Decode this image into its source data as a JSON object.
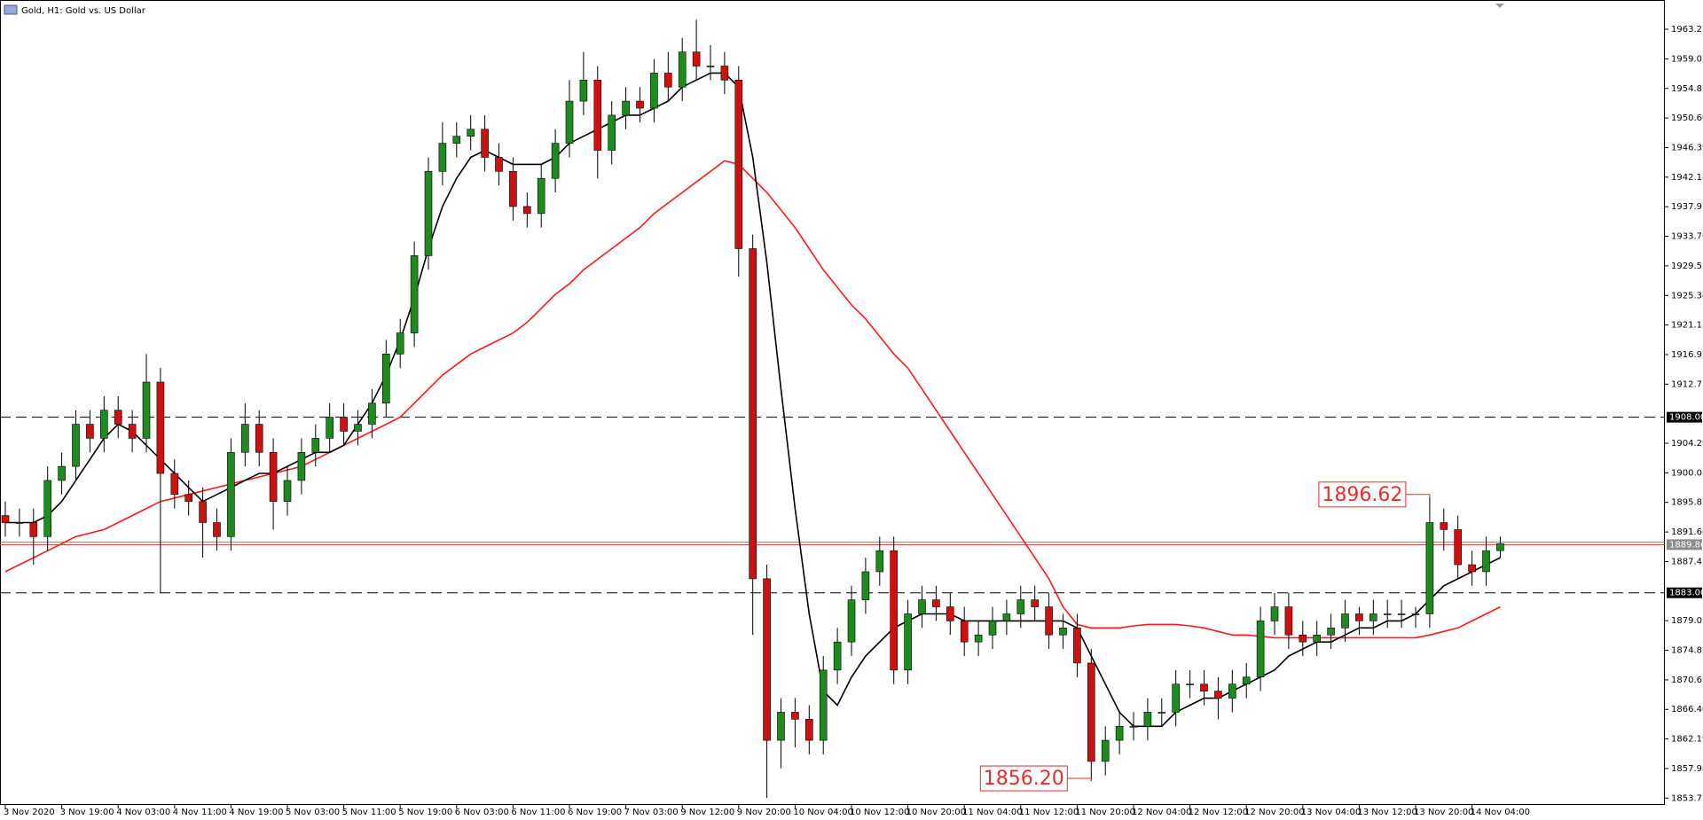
{
  "chart_data": {
    "type": "candlestick",
    "title": "Gold, H1:  Gold vs. US Dollar",
    "categories": [
      "3 Nov 2020",
      null,
      null,
      null,
      "3 Nov 19:00",
      null,
      null,
      null,
      "4 Nov 03:00",
      null,
      null,
      null,
      "4 Nov 11:00",
      null,
      null,
      null,
      "4 Nov 19:00",
      null,
      null,
      null,
      "5 Nov 03:00",
      null,
      null,
      null,
      "5 Nov 11:00",
      null,
      null,
      null,
      "5 Nov 19:00",
      null,
      null,
      null,
      "6 Nov 03:00",
      null,
      null,
      null,
      "6 Nov 11:00",
      null,
      null,
      null,
      "6 Nov 19:00",
      null,
      null,
      null,
      "7 Nov 03:00",
      null,
      null,
      null,
      "9 Nov 12:00",
      null,
      null,
      null,
      "9 Nov 20:00",
      null,
      null,
      null,
      "10 Nov 04:00",
      null,
      null,
      null,
      "10 Nov 12:00",
      null,
      null,
      null,
      "10 Nov 20:00",
      null,
      null,
      null,
      "11 Nov 04:00",
      null,
      null,
      null,
      "11 Nov 12:00",
      null,
      null,
      null,
      "11 Nov 20:00",
      null,
      null,
      null,
      "12 Nov 04:00",
      null,
      null,
      null,
      "12 Nov 12:00",
      null,
      null,
      null,
      "12 Nov 20:00",
      null,
      null,
      null,
      "13 Nov 04:00",
      null,
      null,
      null,
      "13 Nov 12:00",
      null,
      null,
      null,
      "13 Nov 20:00",
      null,
      null,
      null,
      "14 Nov 04:00",
      null,
      null
    ],
    "open": [
      1894,
      1893,
      1893,
      1891,
      1899,
      1901,
      1907,
      1905,
      1909,
      1907,
      1905,
      1913,
      1900,
      1897,
      1896,
      1893,
      1891,
      1903,
      1907,
      1903,
      1896,
      1899,
      1903,
      1905,
      1908,
      1906,
      1907,
      1910,
      1917,
      1920,
      1931,
      1943,
      1947,
      1948,
      1949,
      1945,
      1943,
      1938,
      1937,
      1942,
      1947,
      1953,
      1956,
      1946,
      1951,
      1953,
      1952,
      1957,
      1955,
      1960,
      1958,
      1958,
      1956,
      1932,
      1885,
      1862,
      1866,
      1865,
      1862,
      1872,
      1876,
      1882,
      1886,
      1889,
      1872,
      1880,
      1882,
      1881,
      1879,
      1876,
      1877,
      1879,
      1880,
      1882,
      1881,
      1877,
      1878,
      1873,
      1859,
      1862,
      1864,
      1864,
      1866,
      1866,
      1870,
      1870,
      1869,
      1868,
      1870,
      1871,
      1879,
      1881,
      1877,
      1876,
      1877,
      1878,
      1880,
      1879,
      1880,
      1880,
      1880,
      1880,
      1893,
      1892,
      1887,
      1886,
      1889
    ],
    "high": [
      1896,
      1895,
      1895,
      1901,
      1903,
      1909,
      1909,
      1911,
      1911,
      1909,
      1917,
      1915,
      1902,
      1899,
      1898,
      1895,
      1905,
      1910,
      1909,
      1905,
      1901,
      1905,
      1907,
      1910,
      1910,
      1909,
      1912,
      1919,
      1922,
      1933,
      1945,
      1950,
      1950,
      1951,
      1951,
      1947,
      1945,
      1940,
      1944,
      1949,
      1956,
      1960,
      1958,
      1953,
      1955,
      1955,
      1959,
      1960,
      1962,
      1964.6,
      1961,
      1960,
      1958,
      1934,
      1887,
      1868,
      1868,
      1867,
      1874,
      1878,
      1884,
      1888,
      1891,
      1891,
      1882,
      1884,
      1884,
      1883,
      1881,
      1879,
      1881,
      1882,
      1884,
      1884,
      1883,
      1880,
      1880,
      1875,
      1864,
      1866,
      1866,
      1868,
      1868,
      1872,
      1872,
      1872,
      1871,
      1872,
      1873,
      1881,
      1883,
      1883,
      1879,
      1879,
      1880,
      1882,
      1881,
      1882,
      1882,
      1882,
      1881,
      1896.62,
      1895,
      1894,
      1889,
      1891,
      1891
    ],
    "low": [
      1891,
      1891,
      1887,
      1889,
      1897,
      1899,
      1903,
      1903,
      1905,
      1903,
      1903,
      1883,
      1895,
      1894,
      1888,
      1889,
      1889,
      1901,
      1901,
      1892,
      1894,
      1897,
      1901,
      1903,
      1904,
      1904,
      1905,
      1908,
      1915,
      1918,
      1929,
      1941,
      1945,
      1946,
      1943,
      1941,
      1936,
      1935,
      1935,
      1940,
      1945,
      1951,
      1942,
      1944,
      1949,
      1950,
      1950,
      1953,
      1953,
      1956,
      1956,
      1954,
      1928,
      1877,
      1853.8,
      1858,
      1861,
      1860,
      1860,
      1870,
      1874,
      1880,
      1884,
      1870,
      1870,
      1878,
      1879,
      1877,
      1874,
      1874,
      1875,
      1877,
      1878,
      1879,
      1875,
      1875,
      1871,
      1856.2,
      1857,
      1860,
      1862,
      1862,
      1864,
      1864,
      1868,
      1867,
      1865,
      1866,
      1868,
      1869,
      1877,
      1875,
      1874,
      1874,
      1875,
      1876,
      1877,
      1877,
      1878,
      1878,
      1878,
      1878,
      1889,
      1885,
      1884,
      1884,
      1888
    ],
    "close": [
      1893,
      1893,
      1891,
      1899,
      1901,
      1907,
      1905,
      1909,
      1907,
      1905,
      1913,
      1900,
      1897,
      1896,
      1893,
      1891,
      1903,
      1907,
      1903,
      1896,
      1899,
      1903,
      1905,
      1908,
      1906,
      1907,
      1910,
      1917,
      1920,
      1931,
      1943,
      1947,
      1948,
      1949,
      1945,
      1943,
      1938,
      1937,
      1942,
      1947,
      1953,
      1956,
      1946,
      1951,
      1953,
      1952,
      1957,
      1955,
      1960,
      1958,
      1958,
      1956,
      1932,
      1885,
      1862,
      1866,
      1865,
      1862,
      1872,
      1876,
      1882,
      1886,
      1889,
      1872,
      1880,
      1882,
      1881,
      1879,
      1876,
      1877,
      1879,
      1880,
      1882,
      1881,
      1877,
      1878,
      1873,
      1859,
      1862,
      1864,
      1864,
      1866,
      1866,
      1870,
      1870,
      1869,
      1868,
      1870,
      1871,
      1879,
      1881,
      1877,
      1876,
      1877,
      1878,
      1880,
      1879,
      1880,
      1880,
      1880,
      1880,
      1893,
      1892,
      1887,
      1886,
      1889,
      1890
    ],
    "up_color": "#1f8a1f",
    "down_color": "#d01010",
    "lines": [
      {
        "color": "#ff1a1a",
        "values": [
          1886,
          1887,
          1888,
          1889,
          1890,
          1891,
          1891.5,
          1892,
          1893,
          1894,
          1895,
          1896,
          1896.5,
          1897,
          1897.5,
          1898,
          1898.5,
          1899,
          1899.5,
          1900,
          1900.5,
          1901,
          1902,
          1903,
          1904,
          1905,
          1906,
          1907,
          1908,
          1910,
          1912,
          1914,
          1915.5,
          1917,
          1918,
          1919,
          1920,
          1921.5,
          1923.5,
          1925.5,
          1927,
          1929,
          1930.5,
          1932,
          1933.5,
          1935,
          1937,
          1938.5,
          1940,
          1941.5,
          1943,
          1944.5,
          1944,
          1942,
          1940,
          1937.5,
          1935,
          1932,
          1929,
          1926.5,
          1924,
          1922,
          1919.5,
          1917,
          1915,
          1912,
          1909,
          1906,
          1903,
          1900,
          1897,
          1894,
          1891,
          1888,
          1885,
          1881,
          1878.5,
          1878,
          1878,
          1878,
          1878.3,
          1878.5,
          1878.5,
          1878.5,
          1878.3,
          1878,
          1877.5,
          1877,
          1877,
          1876.8,
          1876.6,
          1876.6,
          1876.6,
          1876.6,
          1876.6,
          1876.6,
          1876.6,
          1876.6,
          1876.6,
          1876.6,
          1876.6,
          1877,
          1877.5,
          1878,
          1879,
          1880,
          1881
        ]
      },
      {
        "color": "#000000",
        "values": [
          1893,
          1893,
          1893,
          1894,
          1896,
          1899,
          1902,
          1905,
          1907,
          1906,
          1904,
          1902,
          1900,
          1898,
          1896,
          1897,
          1898,
          1899,
          1900,
          1900,
          1901,
          1902,
          1903,
          1903,
          1904,
          1907,
          1910,
          1914,
          1919,
          1925,
          1932,
          1938,
          1942,
          1945,
          1946,
          1945,
          1944,
          1944,
          1944,
          1945,
          1947,
          1948,
          1949,
          1950,
          1951,
          1951,
          1952,
          1953,
          1955,
          1956,
          1957,
          1957,
          1955,
          1945,
          1930,
          1912,
          1895,
          1880,
          1869,
          1867,
          1871,
          1874,
          1876,
          1878,
          1879,
          1880,
          1880,
          1880,
          1879,
          1879,
          1879,
          1879,
          1879,
          1879,
          1879,
          1879,
          1878,
          1874,
          1870,
          1866,
          1864,
          1864,
          1864,
          1866,
          1867,
          1868,
          1868,
          1869,
          1870,
          1871,
          1872,
          1874,
          1875,
          1876,
          1876,
          1877,
          1878,
          1878,
          1879,
          1879,
          1880,
          1882,
          1884,
          1885,
          1886,
          1887,
          1888
        ]
      }
    ],
    "ylim": [
      1852.8,
      1967.4
    ],
    "yticks": [
      1963.23,
      1959.02,
      1954.81,
      {
        "value": 1950.6,
        "label": "1950.60"
      },
      1946.39,
      1942.18,
      1937.97,
      1933.76,
      1929.55,
      1925.34,
      1921.13,
      1916.92,
      1912.71,
      1904.29,
      1900.08,
      1895.87,
      1891.66,
      1887.45,
      1879.03,
      1874.82,
      1870.61,
      {
        "value": 1866.4,
        "label": "1866.40"
      },
      1862.19,
      1857.98,
      1853.77
    ],
    "levels": [
      {
        "value": 1908,
        "label": "1908.00"
      },
      {
        "value": 1883,
        "label": "1883.00"
      }
    ],
    "price": {
      "value": 1889.86,
      "label": "1889.86"
    },
    "annotations": [
      {
        "value": 1896.62,
        "label": "1896.62",
        "index": 101
      },
      {
        "value": 1856.2,
        "label": "1856.20",
        "index": 77
      }
    ]
  }
}
